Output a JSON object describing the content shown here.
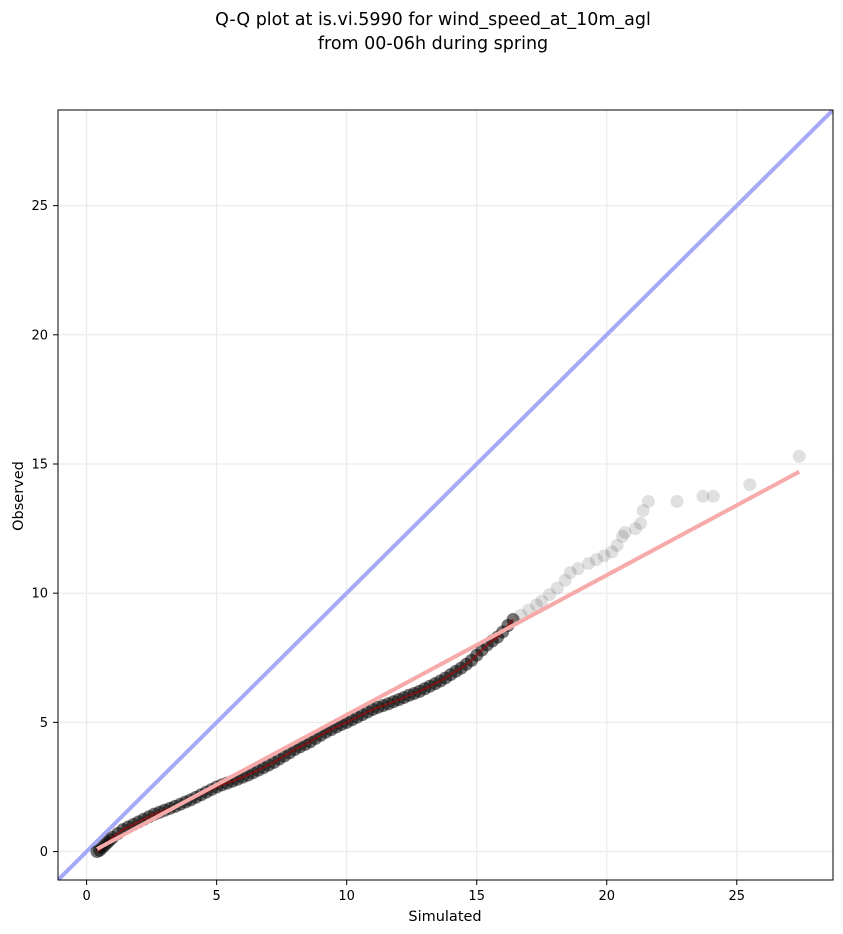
{
  "chart_data": {
    "type": "scatter",
    "title_line1": "Q-Q plot at is.vi.5990 for wind_speed_at_10m_agl",
    "title_line2": "from 00-06h during spring",
    "xlabel": "Simulated",
    "ylabel": "Observed",
    "xlim": [
      -1.1,
      28.7
    ],
    "ylim": [
      -1.1,
      28.7
    ],
    "xticks": [
      0,
      5,
      10,
      15,
      20,
      25
    ],
    "yticks": [
      0,
      5,
      10,
      15,
      20,
      25
    ],
    "grid": true,
    "colors": {
      "identity_line": "#a6a9f5",
      "fit_line": "#f6aaaa",
      "points": "#000000",
      "dense_line": "#8b1010"
    },
    "identity_line": {
      "x": [
        -1.1,
        28.7
      ],
      "y": [
        -1.1,
        28.7
      ]
    },
    "fit_line": {
      "x": [
        0.4,
        27.4
      ],
      "y": [
        0.1,
        14.7
      ]
    },
    "series": [
      {
        "points": [
          [
            0.4,
            0.0
          ],
          [
            0.5,
            0.05
          ],
          [
            0.6,
            0.15
          ],
          [
            0.7,
            0.25
          ],
          [
            0.8,
            0.35
          ],
          [
            0.9,
            0.45
          ],
          [
            1.0,
            0.55
          ],
          [
            1.2,
            0.7
          ],
          [
            1.4,
            0.85
          ],
          [
            1.6,
            0.95
          ],
          [
            1.8,
            1.05
          ],
          [
            2.0,
            1.15
          ],
          [
            2.2,
            1.25
          ],
          [
            2.4,
            1.35
          ],
          [
            2.6,
            1.45
          ],
          [
            2.8,
            1.52
          ],
          [
            3.0,
            1.6
          ],
          [
            3.2,
            1.67
          ],
          [
            3.4,
            1.75
          ],
          [
            3.6,
            1.83
          ],
          [
            3.8,
            1.92
          ],
          [
            4.0,
            2.0
          ],
          [
            4.2,
            2.1
          ],
          [
            4.4,
            2.2
          ],
          [
            4.6,
            2.3
          ],
          [
            4.8,
            2.4
          ],
          [
            5.0,
            2.5
          ],
          [
            5.2,
            2.58
          ],
          [
            5.4,
            2.65
          ],
          [
            5.6,
            2.72
          ],
          [
            5.8,
            2.8
          ],
          [
            6.0,
            2.88
          ],
          [
            6.2,
            2.96
          ],
          [
            6.4,
            3.05
          ],
          [
            6.6,
            3.15
          ],
          [
            6.8,
            3.25
          ],
          [
            7.0,
            3.35
          ],
          [
            7.2,
            3.45
          ],
          [
            7.4,
            3.58
          ],
          [
            7.6,
            3.7
          ],
          [
            7.8,
            3.82
          ],
          [
            8.0,
            3.95
          ],
          [
            8.2,
            4.05
          ],
          [
            8.4,
            4.15
          ],
          [
            8.6,
            4.25
          ],
          [
            8.8,
            4.38
          ],
          [
            9.0,
            4.5
          ],
          [
            9.2,
            4.62
          ],
          [
            9.4,
            4.72
          ],
          [
            9.6,
            4.82
          ],
          [
            9.8,
            4.92
          ],
          [
            10.0,
            5.0
          ],
          [
            10.2,
            5.1
          ],
          [
            10.4,
            5.2
          ],
          [
            10.6,
            5.3
          ],
          [
            10.8,
            5.4
          ],
          [
            11.0,
            5.5
          ],
          [
            11.2,
            5.58
          ],
          [
            11.4,
            5.65
          ],
          [
            11.6,
            5.72
          ],
          [
            11.8,
            5.8
          ],
          [
            12.0,
            5.88
          ],
          [
            12.2,
            5.96
          ],
          [
            12.4,
            6.05
          ],
          [
            12.6,
            6.12
          ],
          [
            12.8,
            6.2
          ],
          [
            13.0,
            6.3
          ],
          [
            13.2,
            6.4
          ],
          [
            13.4,
            6.5
          ],
          [
            13.6,
            6.6
          ],
          [
            13.8,
            6.72
          ],
          [
            14.0,
            6.85
          ],
          [
            14.2,
            6.98
          ],
          [
            14.4,
            7.1
          ],
          [
            14.6,
            7.25
          ],
          [
            14.8,
            7.4
          ],
          [
            15.0,
            7.6
          ],
          [
            15.2,
            7.8
          ],
          [
            15.4,
            8.0
          ],
          [
            15.6,
            8.15
          ],
          [
            15.8,
            8.3
          ],
          [
            16.0,
            8.5
          ],
          [
            16.2,
            8.75
          ],
          [
            16.4,
            8.98
          ],
          [
            16.7,
            9.15
          ],
          [
            17.0,
            9.35
          ],
          [
            17.3,
            9.55
          ],
          [
            17.5,
            9.7
          ],
          [
            17.8,
            9.95
          ],
          [
            18.1,
            10.2
          ],
          [
            18.4,
            10.5
          ],
          [
            18.6,
            10.8
          ],
          [
            18.9,
            10.95
          ],
          [
            19.3,
            11.15
          ],
          [
            19.6,
            11.3
          ],
          [
            19.9,
            11.45
          ],
          [
            20.2,
            11.6
          ],
          [
            20.4,
            11.85
          ],
          [
            20.6,
            12.2
          ],
          [
            20.7,
            12.35
          ],
          [
            21.1,
            12.5
          ],
          [
            21.3,
            12.7
          ],
          [
            21.4,
            13.2
          ],
          [
            21.6,
            13.55
          ],
          [
            22.7,
            13.55
          ],
          [
            23.7,
            13.75
          ],
          [
            24.1,
            13.75
          ],
          [
            25.5,
            14.2
          ],
          [
            27.4,
            15.3
          ]
        ]
      }
    ]
  }
}
